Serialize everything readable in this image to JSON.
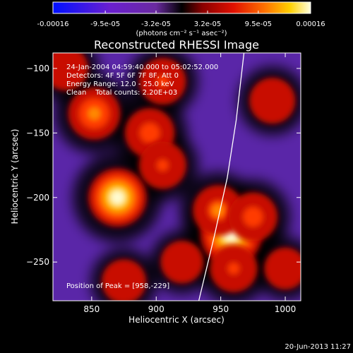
{
  "chart_data": {
    "type": "heatmap",
    "title": "Reconstructed RHESSI Image",
    "xlabel": "Heliocentric X (arcsec)",
    "ylabel": "Heliocentric Y (arcsec)",
    "xlim": [
      820,
      1012
    ],
    "ylim": [
      -280,
      -88
    ],
    "x_ticks": [
      850,
      900,
      950,
      1000
    ],
    "y_ticks": [
      -100,
      -150,
      -200,
      -250
    ],
    "colorbar": {
      "label": "(photons cm⁻² s⁻¹ asec⁻²)",
      "range": [
        -0.00016,
        0.00016
      ],
      "tick_labels": [
        "-0.00016",
        "-9.5e-05",
        "-3.2e-05",
        "3.2e-05",
        "9.5e-05",
        "0.00016"
      ],
      "tick_values": [
        -0.00016,
        -9.5e-05,
        -3.2e-05,
        3.2e-05,
        9.5e-05,
        0.00016
      ]
    },
    "annotations": [
      "24-Jan-2004 04:59:40.000 to 05:02:52.000",
      "Detectors: 4F 5F 6F 7F 8F, Att 0",
      "Energy Range: 12.0 - 25.0 keV",
      "Clean    Total counts: 2.20E+03"
    ],
    "peak_label": "Position of Peak = [958,-229]",
    "peak": [
      958,
      -229
    ],
    "timestamp": "20-Jun-2013 11:27",
    "sources": [
      {
        "x": 870,
        "y": -200,
        "value": 0.00014
      },
      {
        "x": 852,
        "y": -135,
        "value": 0.0001
      },
      {
        "x": 895,
        "y": -150,
        "value": 8.5e-05
      },
      {
        "x": 905,
        "y": -175,
        "value": 7e-05
      },
      {
        "x": 958,
        "y": -229,
        "value": 0.00016
      },
      {
        "x": 948,
        "y": -210,
        "value": 9e-05
      },
      {
        "x": 975,
        "y": -215,
        "value": 8e-05
      },
      {
        "x": 960,
        "y": -255,
        "value": 7e-05
      },
      {
        "x": 990,
        "y": -125,
        "value": 6e-05
      },
      {
        "x": 905,
        "y": -110,
        "value": 6.5e-05
      },
      {
        "x": 920,
        "y": -250,
        "value": 4e-05
      },
      {
        "x": 875,
        "y": -265,
        "value": 5e-05
      },
      {
        "x": 1000,
        "y": -255,
        "value": 3.5e-05
      },
      {
        "x": 830,
        "y": -100,
        "value": 5e-05
      }
    ],
    "grid": false,
    "limb_curve": [
      [
        933,
        -280
      ],
      [
        945,
        -230
      ],
      [
        955,
        -185
      ],
      [
        962,
        -140
      ],
      [
        968,
        -88
      ]
    ]
  }
}
